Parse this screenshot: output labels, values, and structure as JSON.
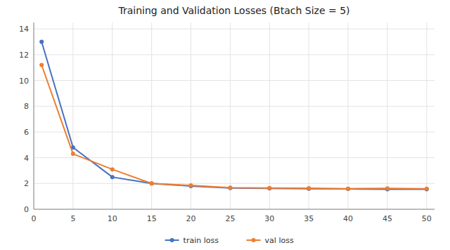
{
  "chart_data": {
    "type": "line",
    "title": "Training and Validation Losses (Btach Size = 5)",
    "x": [
      1,
      5,
      10,
      15,
      20,
      25,
      30,
      35,
      40,
      45,
      50
    ],
    "series": [
      {
        "name": "train loss",
        "color": "#4472c4",
        "marker": "circle",
        "values": [
          13.0,
          4.8,
          2.5,
          2.0,
          1.8,
          1.65,
          1.62,
          1.6,
          1.58,
          1.55,
          1.55
        ]
      },
      {
        "name": "val loss",
        "color": "#ed7d31",
        "marker": "circle",
        "values": [
          11.2,
          4.3,
          3.1,
          2.0,
          1.85,
          1.68,
          1.65,
          1.63,
          1.6,
          1.62,
          1.6
        ]
      }
    ],
    "xlim": [
      0,
      51
    ],
    "ylim": [
      0,
      14.5
    ],
    "xticks": [
      0,
      5,
      10,
      15,
      20,
      25,
      30,
      35,
      40,
      45,
      50
    ],
    "yticks": [
      0,
      2,
      4,
      6,
      8,
      10,
      12,
      14
    ],
    "grid": true,
    "legend": "bottom"
  }
}
